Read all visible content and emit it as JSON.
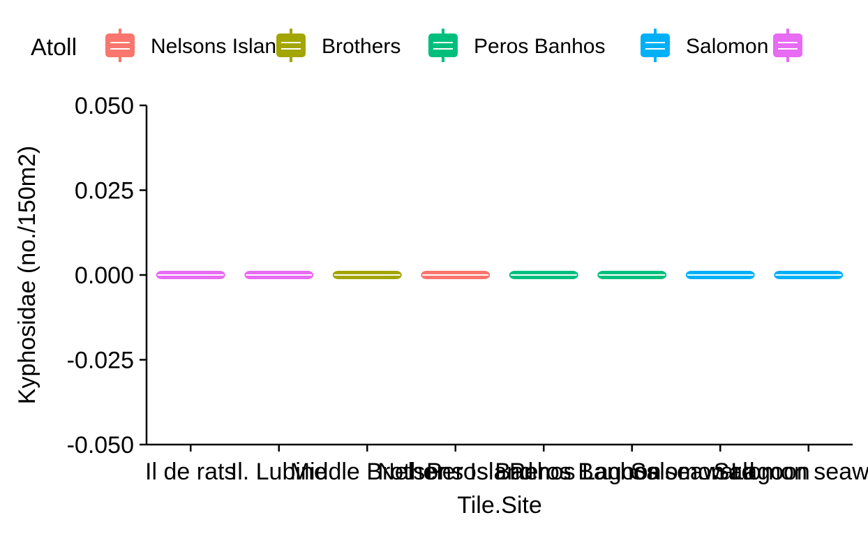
{
  "chart_data": {
    "type": "boxplot",
    "title": "",
    "xlabel": "Tile.Site",
    "ylabel": "Kyphosidae (no./150m2)",
    "ylim": [
      -0.05,
      0.05
    ],
    "yticks": [
      -0.05,
      -0.025,
      0.0,
      0.025,
      0.05
    ],
    "ytick_labels": [
      "-0.050",
      "-0.025",
      "0.000",
      "0.025",
      "0.050"
    ],
    "grid": false,
    "legend_title": "Atoll",
    "legend_position": "top",
    "legend": [
      {
        "name": "Nelsons Island",
        "color": "#F8766D"
      },
      {
        "name": "Brothers",
        "color": "#A3A500"
      },
      {
        "name": "Peros Banhos",
        "color": "#00BF7D"
      },
      {
        "name": "Salomon",
        "color": "#00B0F6"
      },
      {
        "name": "",
        "color": "#E76BF3"
      }
    ],
    "categories": [
      "Il de rats",
      "Il. Lubine",
      "Middle Brother",
      "Nelsons Island",
      "Peros Banhos Lagoon",
      "Peros Banhos seaward",
      "Salomon Lagoon",
      "Salomon seaward"
    ],
    "boxes": [
      {
        "category": "Il de rats",
        "atoll_color": "#E76BF3",
        "min": 0,
        "q1": 0,
        "median": 0,
        "q3": 0,
        "max": 0
      },
      {
        "category": "Il. Lubine",
        "atoll_color": "#E76BF3",
        "min": 0,
        "q1": 0,
        "median": 0,
        "q3": 0,
        "max": 0
      },
      {
        "category": "Middle Brother",
        "atoll_color": "#A3A500",
        "min": 0,
        "q1": 0,
        "median": 0,
        "q3": 0,
        "max": 0
      },
      {
        "category": "Nelsons Island",
        "atoll_color": "#F8766D",
        "min": 0,
        "q1": 0,
        "median": 0,
        "q3": 0,
        "max": 0
      },
      {
        "category": "Peros Banhos Lagoon",
        "atoll_color": "#00BF7D",
        "min": 0,
        "q1": 0,
        "median": 0,
        "q3": 0,
        "max": 0
      },
      {
        "category": "Peros Banhos seaward",
        "atoll_color": "#00BF7D",
        "min": 0,
        "q1": 0,
        "median": 0,
        "q3": 0,
        "max": 0
      },
      {
        "category": "Salomon Lagoon",
        "atoll_color": "#00B0F6",
        "min": 0,
        "q1": 0,
        "median": 0,
        "q3": 0,
        "max": 0
      },
      {
        "category": "Salomon seaward",
        "atoll_color": "#00B0F6",
        "min": 0,
        "q1": 0,
        "median": 0,
        "q3": 0,
        "max": 0
      }
    ]
  }
}
